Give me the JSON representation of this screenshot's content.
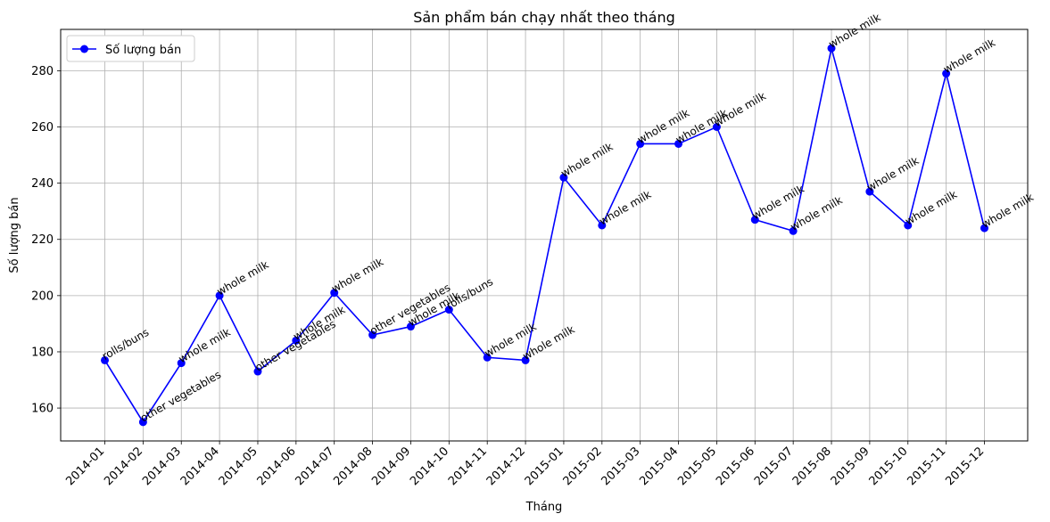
{
  "chart_data": {
    "type": "line",
    "title": "Sản phẩm bán chạy nhất theo tháng",
    "xlabel": "Tháng",
    "ylabel": "Số lượng bán",
    "categories": [
      "2014-01",
      "2014-02",
      "2014-03",
      "2014-04",
      "2014-05",
      "2014-06",
      "2014-07",
      "2014-08",
      "2014-09",
      "2014-10",
      "2014-11",
      "2014-12",
      "2015-01",
      "2015-02",
      "2015-03",
      "2015-04",
      "2015-05",
      "2015-06",
      "2015-07",
      "2015-08",
      "2015-09",
      "2015-10",
      "2015-11",
      "2015-12"
    ],
    "series": [
      {
        "name": "Số lượng bán",
        "color": "#0000ff",
        "values": [
          177,
          155,
          176,
          200,
          173,
          184,
          201,
          186,
          189,
          195,
          178,
          177,
          242,
          225,
          254,
          254,
          260,
          227,
          223,
          288,
          237,
          225,
          279,
          224
        ]
      }
    ],
    "annotations": [
      "rolls/buns",
      "other vegetables",
      "whole milk",
      "whole milk",
      "other vegetables",
      "whole milk",
      "whole milk",
      "other vegetables",
      "whole milk",
      "rolls/buns",
      "whole milk",
      "whole milk",
      "whole milk",
      "whole milk",
      "whole milk",
      "whole milk",
      "whole milk",
      "whole milk",
      "whole milk",
      "whole milk",
      "whole milk",
      "whole milk",
      "whole milk",
      "whole milk"
    ],
    "yticks": [
      160,
      180,
      200,
      220,
      240,
      260,
      280
    ],
    "ylim": [
      148.3,
      294.7
    ],
    "grid": true,
    "legend_position": "top-left"
  }
}
